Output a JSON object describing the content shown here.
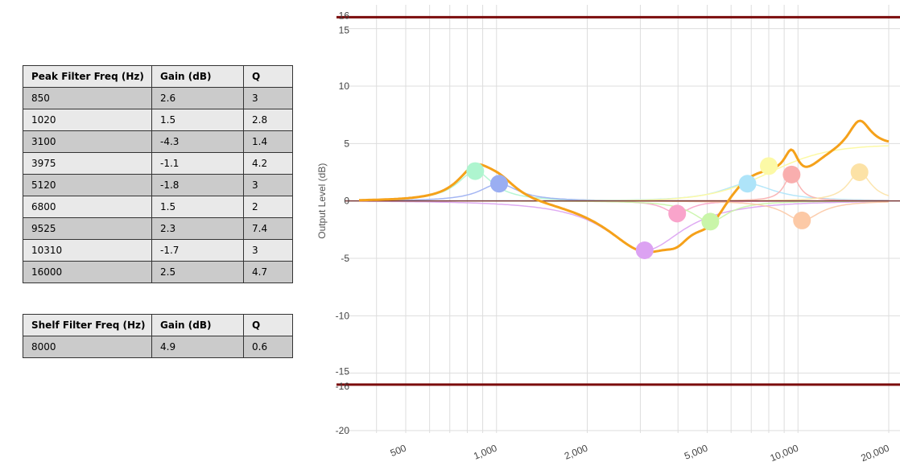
{
  "peak_table": {
    "headers": [
      "Peak Filter Freq (Hz)",
      "Gain (dB)",
      "Q"
    ],
    "rows": [
      [
        "850",
        "2.6",
        "3"
      ],
      [
        "1020",
        "1.5",
        "2.8"
      ],
      [
        "3100",
        "-4.3",
        "1.4"
      ],
      [
        "3975",
        "-1.1",
        "4.2"
      ],
      [
        "5120",
        "-1.8",
        "3"
      ],
      [
        "6800",
        "1.5",
        "2"
      ],
      [
        "9525",
        "2.3",
        "7.4"
      ],
      [
        "10310",
        "-1.7",
        "3"
      ],
      [
        "16000",
        "2.5",
        "4.7"
      ]
    ]
  },
  "shelf_table": {
    "headers": [
      "Shelf Filter Freq (Hz)",
      "Gain (dB)",
      "Q"
    ],
    "rows": [
      [
        "8000",
        "4.9",
        "0.6"
      ]
    ]
  },
  "chart_data": {
    "type": "line",
    "ylabel": "Output Level (dB)",
    "xscale": "log",
    "xlim": [
      350,
      20000
    ],
    "ylim": [
      -20,
      16.8
    ],
    "x_tick_labels": [
      {
        "value": 500,
        "label": "500"
      },
      {
        "value": 1000,
        "label": "1,000"
      },
      {
        "value": 2000,
        "label": "2,000"
      },
      {
        "value": 5000,
        "label": "5,000"
      },
      {
        "value": 10000,
        "label": "10,000"
      },
      {
        "value": 20000,
        "label": "20,000"
      }
    ],
    "y_tick_labels": [
      {
        "value": 16,
        "label": "16"
      },
      {
        "value": 15,
        "label": "15"
      },
      {
        "value": 10,
        "label": "10"
      },
      {
        "value": 5,
        "label": "5"
      },
      {
        "value": 0,
        "label": "0"
      },
      {
        "value": -5,
        "label": "-5"
      },
      {
        "value": -10,
        "label": "-10"
      },
      {
        "value": -15,
        "label": "-15"
      },
      {
        "value": -16,
        "label": "-16"
      },
      {
        "value": -20,
        "label": "-20"
      }
    ],
    "limit_lines": [
      16,
      -16
    ],
    "limit_color": "#7b0c0c",
    "total_color": "#f5a11a",
    "grid": true,
    "peak_filters": [
      {
        "freq": 850,
        "gain": 2.6,
        "q": 3,
        "color": "#aef5cf"
      },
      {
        "freq": 1020,
        "gain": 1.5,
        "q": 2.8,
        "color": "#9aaef2"
      },
      {
        "freq": 3100,
        "gain": -4.3,
        "q": 1.4,
        "color": "#dca2f2"
      },
      {
        "freq": 3975,
        "gain": -1.1,
        "q": 4.2,
        "color": "#f9a4cb"
      },
      {
        "freq": 5120,
        "gain": -1.8,
        "q": 3,
        "color": "#c9f5a9"
      },
      {
        "freq": 6800,
        "gain": 1.5,
        "q": 2,
        "color": "#aee4f9"
      },
      {
        "freq": 9525,
        "gain": 2.3,
        "q": 7.4,
        "color": "#f9aeae"
      },
      {
        "freq": 10310,
        "gain": -1.7,
        "q": 3,
        "color": "#fcc9a6"
      },
      {
        "freq": 16000,
        "gain": 2.5,
        "q": 4.7,
        "color": "#fce2a6"
      }
    ],
    "shelf_filter": {
      "freq": 8000,
      "gain": 4.9,
      "q": 0.6,
      "color": "#fcf9a6"
    }
  }
}
